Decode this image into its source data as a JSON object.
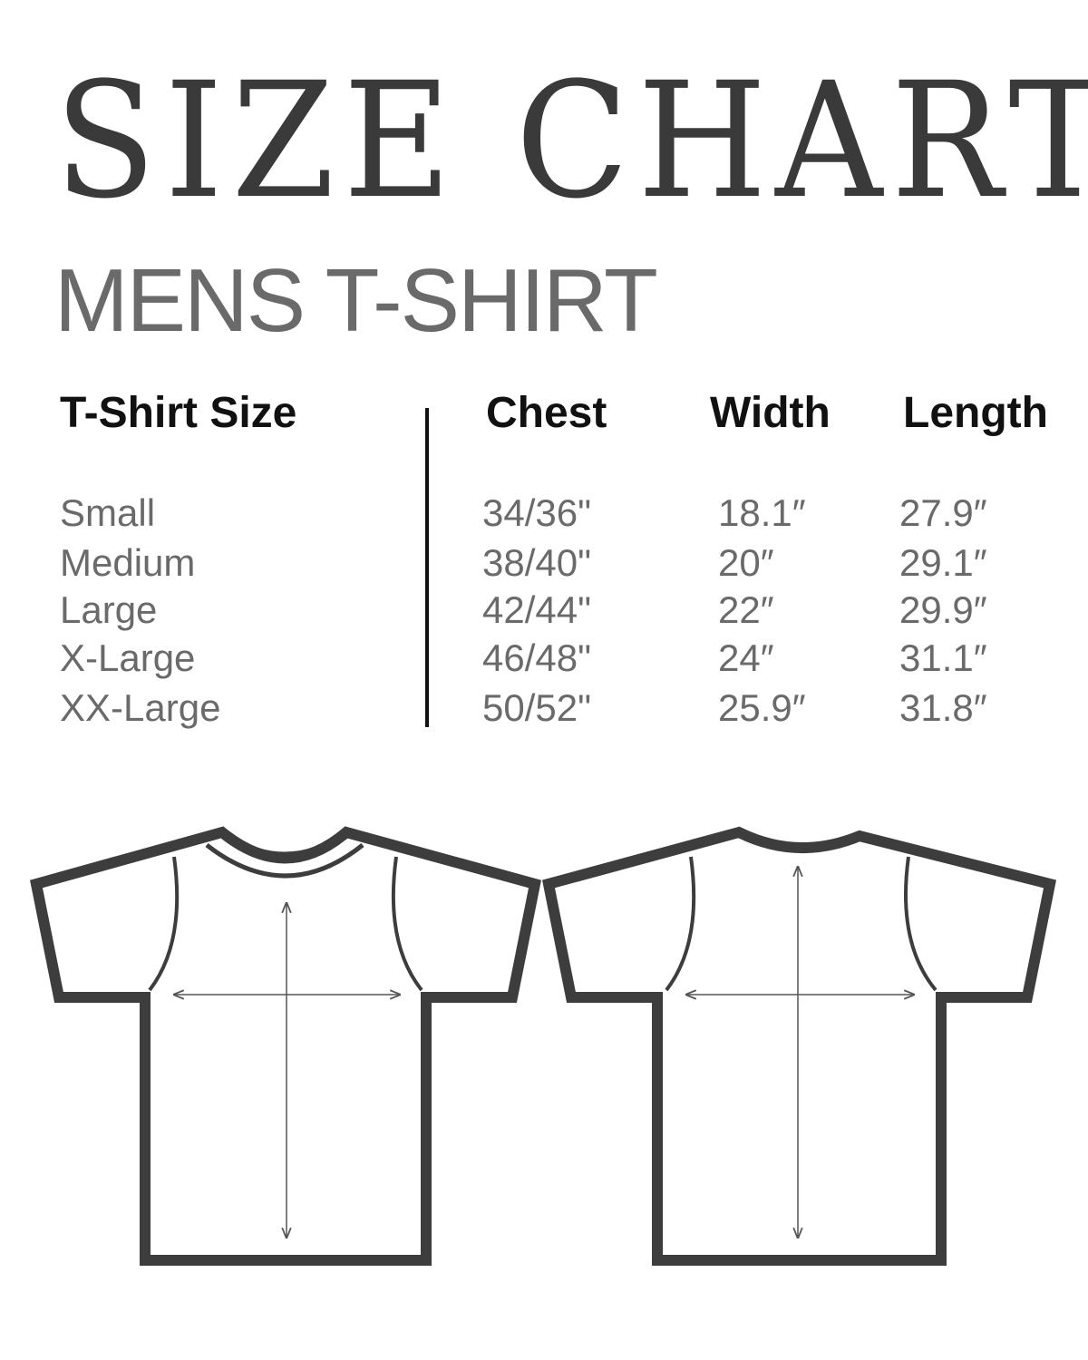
{
  "title": "SIZE CHART",
  "subtitle": "MENS T-SHIRT",
  "table": {
    "headers": [
      "T-Shirt Size",
      "Chest",
      "Width",
      "Length"
    ],
    "rows": [
      [
        "Small",
        "34/36\"",
        "18.1″",
        "27.9″"
      ],
      [
        "Medium",
        "38/40\"",
        "20″",
        "29.1″"
      ],
      [
        "Large",
        "42/44\"",
        "22″",
        "29.9″"
      ],
      [
        "X-Large",
        "46/48\"",
        "24″",
        "31.1″"
      ],
      [
        "XX-Large",
        "50/52\"",
        "25.9″",
        "31.8″"
      ]
    ]
  },
  "colors": {
    "title": "#3a3a3a",
    "subtitle": "#6a6a6a",
    "outline": "#3d3d3d"
  },
  "illustrations": [
    "t-shirt-front",
    "t-shirt-back"
  ]
}
